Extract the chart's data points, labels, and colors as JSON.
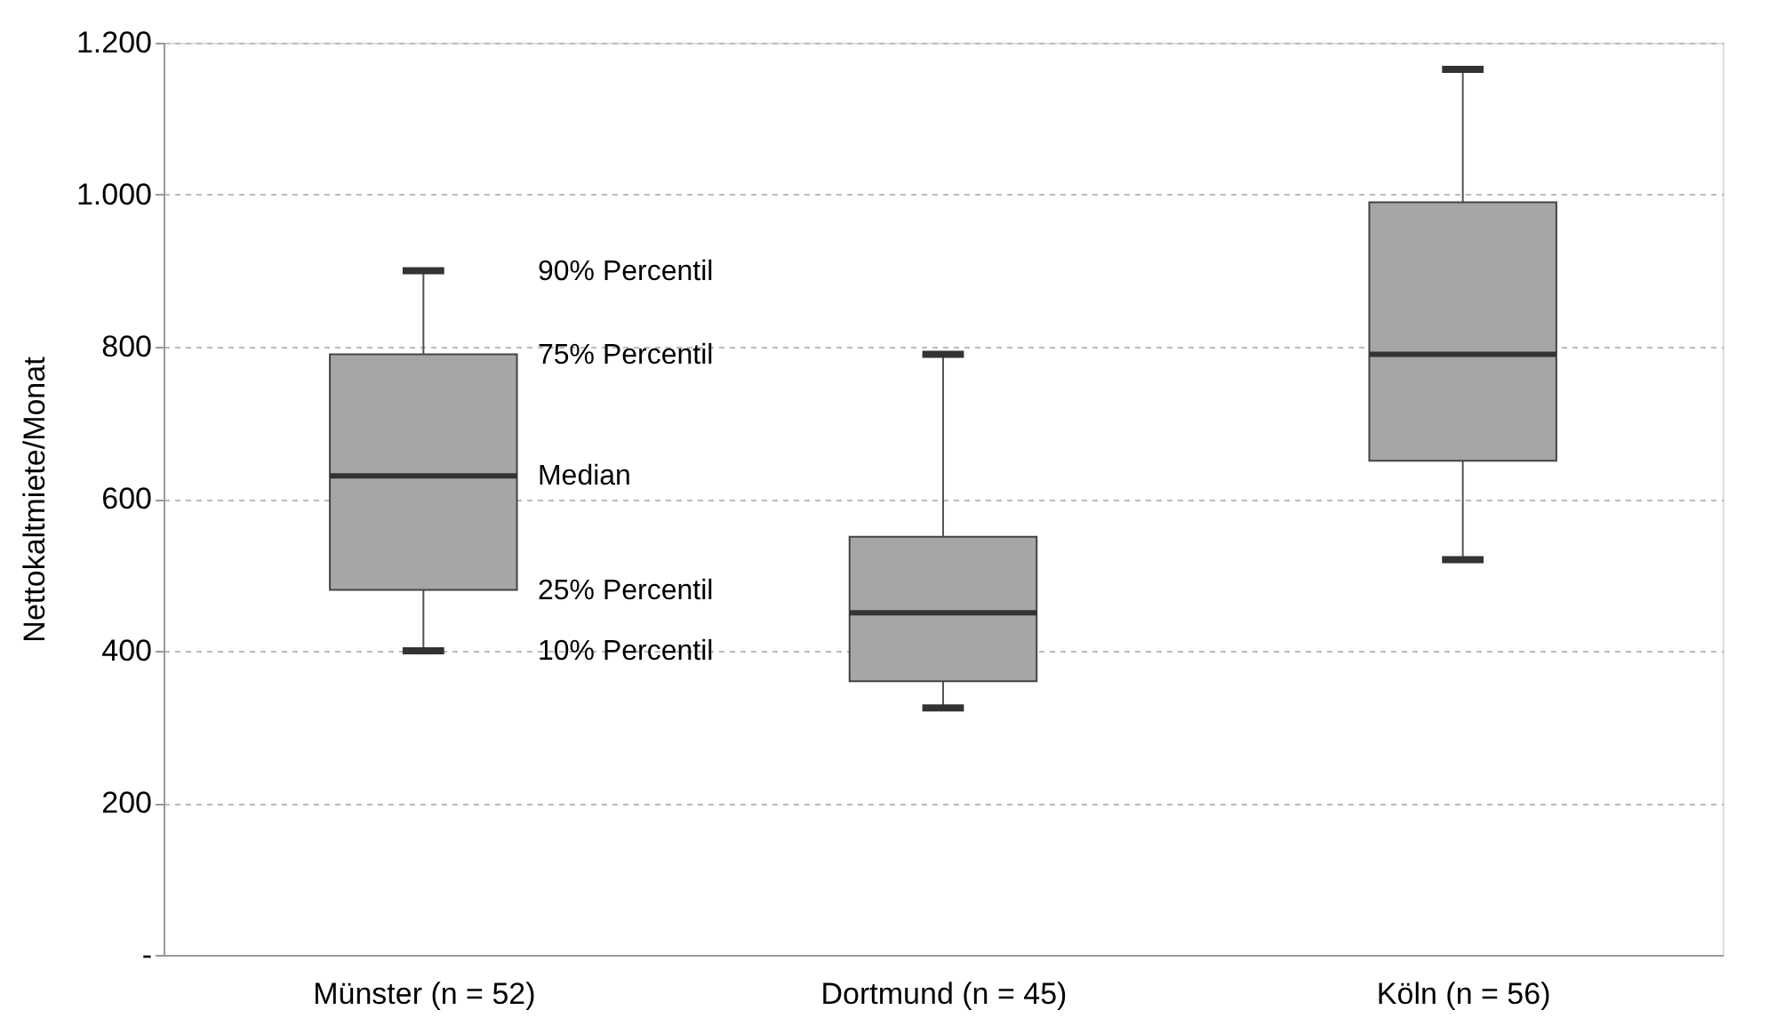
{
  "chart_data": {
    "type": "box",
    "ylabel": "Nettokaltmiete/Monat",
    "categories": [
      "Münster (n = 52)",
      "Dortmund (n = 45)",
      "Köln (n = 56)"
    ],
    "boxes": [
      {
        "low": 400,
        "q1": 480,
        "median": 630,
        "q3": 790,
        "high": 900
      },
      {
        "low": 325,
        "q1": 360,
        "median": 450,
        "q3": 550,
        "high": 790
      },
      {
        "low": 520,
        "q1": 650,
        "median": 790,
        "q3": 990,
        "high": 1165
      }
    ],
    "color": "#a6a6a6",
    "ylim": [
      0,
      1200
    ],
    "yticks": [
      {
        "value": 0,
        "label": "-"
      },
      200,
      400,
      600,
      800,
      {
        "value": 1000,
        "label": "1.000"
      },
      {
        "value": 1200,
        "label": "1.200"
      }
    ],
    "grid": "y",
    "annotations": [
      "90% Percentil",
      "75% Percentil",
      "Median",
      "25% Percentil",
      "10% Percentil"
    ]
  }
}
